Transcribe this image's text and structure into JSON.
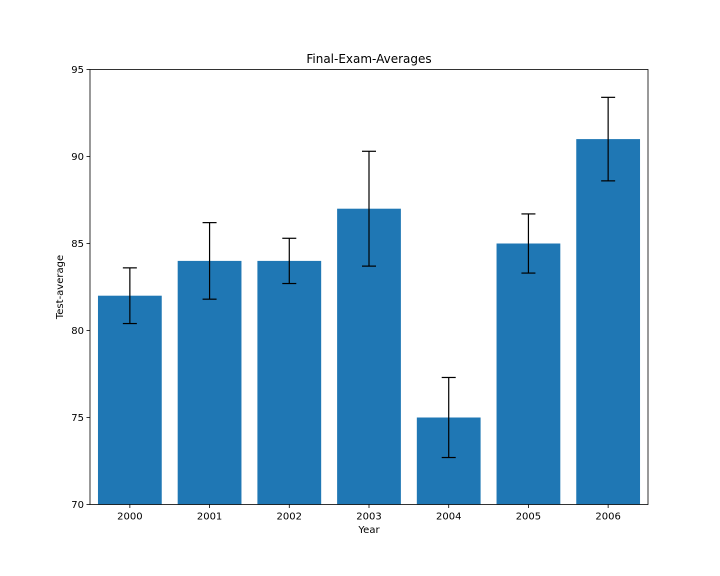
{
  "chart_data": {
    "type": "bar",
    "title": "Final-Exam-Averages",
    "xlabel": "Year",
    "ylabel": "Test-average",
    "categories": [
      "2000",
      "2001",
      "2002",
      "2003",
      "2004",
      "2005",
      "2006"
    ],
    "values": [
      82,
      84,
      84,
      87,
      75,
      85,
      91
    ],
    "error_lower": [
      80.4,
      81.8,
      82.7,
      83.7,
      72.7,
      83.3,
      88.6
    ],
    "error_upper": [
      83.6,
      86.2,
      85.3,
      90.3,
      77.3,
      86.7,
      93.4
    ],
    "ylim": [
      70,
      95
    ],
    "yticks": [
      70,
      75,
      80,
      85,
      90,
      95
    ],
    "grid": false,
    "bar_color": "#1f77b4",
    "error_color": "#000000"
  }
}
